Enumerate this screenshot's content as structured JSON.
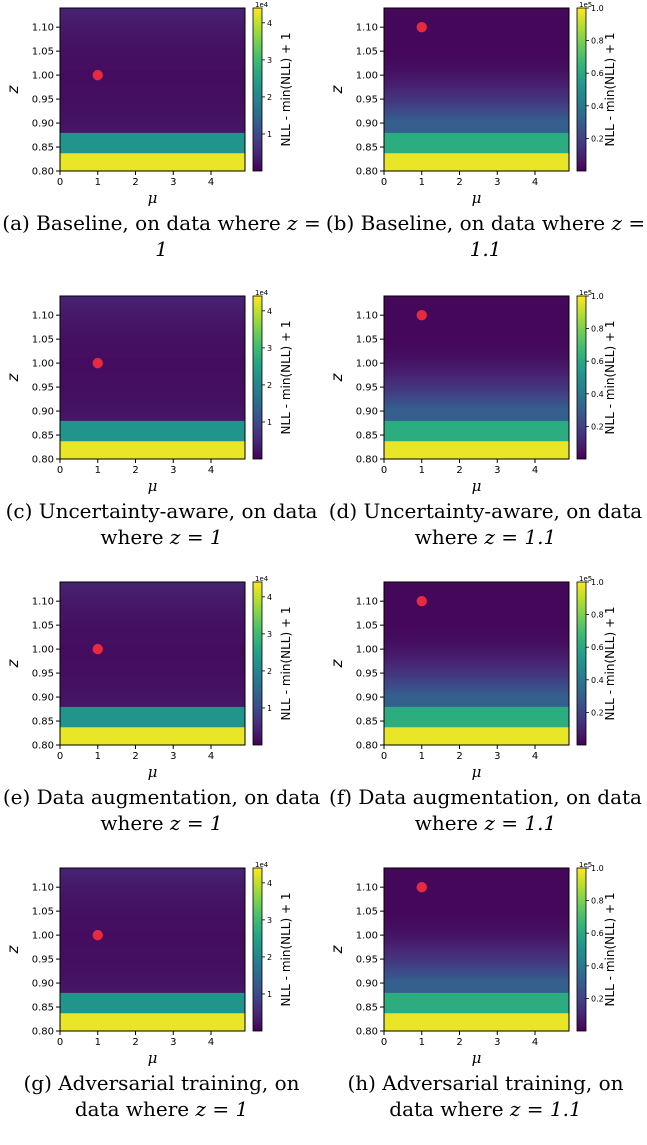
{
  "colormap": "viridis",
  "marker_color": "#e8293f",
  "chart_data": [
    {
      "id": "a",
      "type": "heatmap",
      "xlabel": "μ",
      "ylabel": "z",
      "xlim": [
        0,
        4.9
      ],
      "ylim": [
        0.8,
        1.14
      ],
      "xticks": [
        "0",
        "1",
        "2",
        "3",
        "4"
      ],
      "xtick_values": [
        0,
        1,
        2,
        3,
        4
      ],
      "yticks": [
        "0.80",
        "0.85",
        "0.90",
        "0.95",
        "1.00",
        "1.05",
        "1.10"
      ],
      "ytick_values": [
        0.8,
        0.85,
        0.9,
        0.95,
        1.0,
        1.05,
        1.1
      ],
      "colorbar_label": "NLL - min(NLL) + 1",
      "colorbar_exponent": "1e4",
      "colorbar_max": 4.4,
      "colorbar_ticks": [
        "1",
        "2",
        "3",
        "4"
      ],
      "colorbar_tick_values": [
        1,
        2,
        3,
        4
      ],
      "true_point": {
        "mu": 1,
        "z": 1.0
      },
      "caption_prefix": "(a) Baseline, on data where",
      "caption_math": "z = 1"
    },
    {
      "id": "b",
      "type": "heatmap",
      "xlabel": "μ",
      "ylabel": "z",
      "xlim": [
        0,
        4.9
      ],
      "ylim": [
        0.8,
        1.14
      ],
      "xticks": [
        "0",
        "1",
        "2",
        "3",
        "4"
      ],
      "xtick_values": [
        0,
        1,
        2,
        3,
        4
      ],
      "yticks": [
        "0.80",
        "0.85",
        "0.90",
        "0.95",
        "1.00",
        "1.05",
        "1.10"
      ],
      "ytick_values": [
        0.8,
        0.85,
        0.9,
        0.95,
        1.0,
        1.05,
        1.1
      ],
      "colorbar_label": "NLL - min(NLL) + 1",
      "colorbar_exponent": "1e5",
      "colorbar_max": 1.0,
      "colorbar_ticks": [
        "0.2",
        "0.4",
        "0.6",
        "0.8",
        "1.0"
      ],
      "colorbar_tick_values": [
        0.2,
        0.4,
        0.6,
        0.8,
        1.0
      ],
      "true_point": {
        "mu": 1,
        "z": 1.1
      },
      "caption_prefix": "(b) Baseline, on data where",
      "caption_math": "z = 1.1"
    },
    {
      "id": "c",
      "type": "heatmap",
      "xlabel": "μ",
      "ylabel": "z",
      "xlim": [
        0,
        4.9
      ],
      "ylim": [
        0.8,
        1.14
      ],
      "xticks": [
        "0",
        "1",
        "2",
        "3",
        "4"
      ],
      "xtick_values": [
        0,
        1,
        2,
        3,
        4
      ],
      "yticks": [
        "0.80",
        "0.85",
        "0.90",
        "0.95",
        "1.00",
        "1.05",
        "1.10"
      ],
      "ytick_values": [
        0.8,
        0.85,
        0.9,
        0.95,
        1.0,
        1.05,
        1.1
      ],
      "colorbar_label": "NLL - min(NLL) + 1",
      "colorbar_exponent": "1e4",
      "colorbar_max": 4.4,
      "colorbar_ticks": [
        "1",
        "2",
        "3",
        "4"
      ],
      "colorbar_tick_values": [
        1,
        2,
        3,
        4
      ],
      "true_point": {
        "mu": 1,
        "z": 1.0
      },
      "caption_prefix": "(c) Uncertainty-aware, on data where",
      "caption_math": "z = 1"
    },
    {
      "id": "d",
      "type": "heatmap",
      "xlabel": "μ",
      "ylabel": "z",
      "xlim": [
        0,
        4.9
      ],
      "ylim": [
        0.8,
        1.14
      ],
      "xticks": [
        "0",
        "1",
        "2",
        "3",
        "4"
      ],
      "xtick_values": [
        0,
        1,
        2,
        3,
        4
      ],
      "yticks": [
        "0.80",
        "0.85",
        "0.90",
        "0.95",
        "1.00",
        "1.05",
        "1.10"
      ],
      "ytick_values": [
        0.8,
        0.85,
        0.9,
        0.95,
        1.0,
        1.05,
        1.1
      ],
      "colorbar_label": "NLL - min(NLL) + 1",
      "colorbar_exponent": "1e5",
      "colorbar_max": 1.0,
      "colorbar_ticks": [
        "0.2",
        "0.4",
        "0.6",
        "0.8",
        "1.0"
      ],
      "colorbar_tick_values": [
        0.2,
        0.4,
        0.6,
        0.8,
        1.0
      ],
      "true_point": {
        "mu": 1,
        "z": 1.1
      },
      "caption_prefix": "(d) Uncertainty-aware, on data where",
      "caption_math": "z = 1.1"
    },
    {
      "id": "e",
      "type": "heatmap",
      "xlabel": "μ",
      "ylabel": "z",
      "xlim": [
        0,
        4.9
      ],
      "ylim": [
        0.8,
        1.14
      ],
      "xticks": [
        "0",
        "1",
        "2",
        "3",
        "4"
      ],
      "xtick_values": [
        0,
        1,
        2,
        3,
        4
      ],
      "yticks": [
        "0.80",
        "0.85",
        "0.90",
        "0.95",
        "1.00",
        "1.05",
        "1.10"
      ],
      "ytick_values": [
        0.8,
        0.85,
        0.9,
        0.95,
        1.0,
        1.05,
        1.1
      ],
      "colorbar_label": "NLL - min(NLL) + 1",
      "colorbar_exponent": "1e4",
      "colorbar_max": 4.4,
      "colorbar_ticks": [
        "1",
        "2",
        "3",
        "4"
      ],
      "colorbar_tick_values": [
        1,
        2,
        3,
        4
      ],
      "true_point": {
        "mu": 1,
        "z": 1.0
      },
      "caption_prefix": "(e) Data augmentation, on data where",
      "caption_math": "z = 1"
    },
    {
      "id": "f",
      "type": "heatmap",
      "xlabel": "μ",
      "ylabel": "z",
      "xlim": [
        0,
        4.9
      ],
      "ylim": [
        0.8,
        1.14
      ],
      "xticks": [
        "0",
        "1",
        "2",
        "3",
        "4"
      ],
      "xtick_values": [
        0,
        1,
        2,
        3,
        4
      ],
      "yticks": [
        "0.80",
        "0.85",
        "0.90",
        "0.95",
        "1.00",
        "1.05",
        "1.10"
      ],
      "ytick_values": [
        0.8,
        0.85,
        0.9,
        0.95,
        1.0,
        1.05,
        1.1
      ],
      "colorbar_label": "NLL - min(NLL) + 1",
      "colorbar_exponent": "1e5",
      "colorbar_max": 1.0,
      "colorbar_ticks": [
        "0.2",
        "0.4",
        "0.6",
        "0.8",
        "1.0"
      ],
      "colorbar_tick_values": [
        0.2,
        0.4,
        0.6,
        0.8,
        1.0
      ],
      "true_point": {
        "mu": 1,
        "z": 1.1
      },
      "caption_prefix": "(f) Data augmentation, on data where",
      "caption_math": "z = 1.1"
    },
    {
      "id": "g",
      "type": "heatmap",
      "xlabel": "μ",
      "ylabel": "z",
      "xlim": [
        0,
        4.9
      ],
      "ylim": [
        0.8,
        1.14
      ],
      "xticks": [
        "0",
        "1",
        "2",
        "3",
        "4"
      ],
      "xtick_values": [
        0,
        1,
        2,
        3,
        4
      ],
      "yticks": [
        "0.80",
        "0.85",
        "0.90",
        "0.95",
        "1.00",
        "1.05",
        "1.10"
      ],
      "ytick_values": [
        0.8,
        0.85,
        0.9,
        0.95,
        1.0,
        1.05,
        1.1
      ],
      "colorbar_label": "NLL - min(NLL) + 1",
      "colorbar_exponent": "1e4",
      "colorbar_max": 4.4,
      "colorbar_ticks": [
        "1",
        "2",
        "3",
        "4"
      ],
      "colorbar_tick_values": [
        1,
        2,
        3,
        4
      ],
      "true_point": {
        "mu": 1,
        "z": 1.0
      },
      "caption_prefix": "(g) Adversarial training, on data where",
      "caption_math": "z = 1"
    },
    {
      "id": "h",
      "type": "heatmap",
      "xlabel": "μ",
      "ylabel": "z",
      "xlim": [
        0,
        4.9
      ],
      "ylim": [
        0.8,
        1.14
      ],
      "xticks": [
        "0",
        "1",
        "2",
        "3",
        "4"
      ],
      "xtick_values": [
        0,
        1,
        2,
        3,
        4
      ],
      "yticks": [
        "0.80",
        "0.85",
        "0.90",
        "0.95",
        "1.00",
        "1.05",
        "1.10"
      ],
      "ytick_values": [
        0.8,
        0.85,
        0.9,
        0.95,
        1.0,
        1.05,
        1.1
      ],
      "colorbar_label": "NLL - min(NLL) + 1",
      "colorbar_exponent": "1e5",
      "colorbar_max": 1.0,
      "colorbar_ticks": [
        "0.2",
        "0.4",
        "0.6",
        "0.8",
        "1.0"
      ],
      "colorbar_tick_values": [
        0.2,
        0.4,
        0.6,
        0.8,
        1.0
      ],
      "true_point": {
        "mu": 1,
        "z": 1.1
      },
      "caption_prefix": "(h) Adversarial training, on data where",
      "caption_math": "z = 1.1"
    }
  ]
}
